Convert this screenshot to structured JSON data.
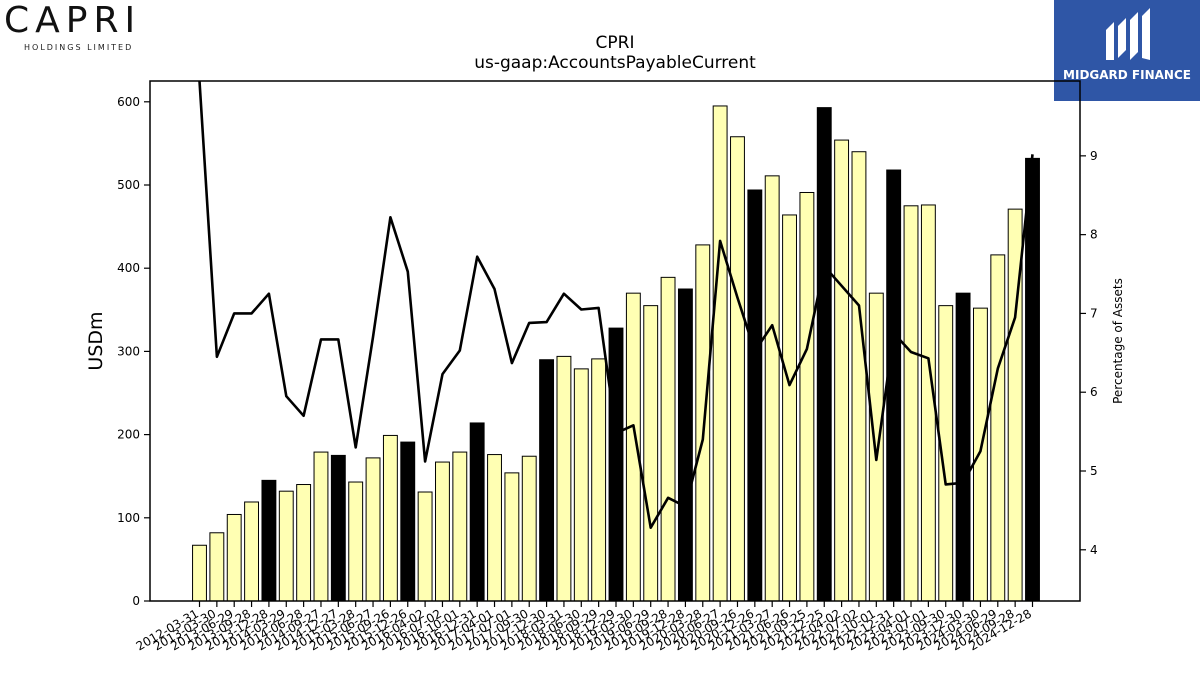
{
  "brand": {
    "company_logo": "CAPRI",
    "company_sub": "HOLDINGS LIMITED",
    "partner_logo": "MIDGARD FINANCE",
    "partner_icon": "midgard-m-icon",
    "partner_color": "#2f56a6"
  },
  "chart_data": {
    "type": "bar",
    "title": "CPRI",
    "subtitle": "us-gaap:AccountsPayableCurrent",
    "ylabel": "USDm",
    "y2label": "Percentage of Assets",
    "ylim": [
      0,
      625
    ],
    "y2lim": [
      3.35,
      9.95
    ],
    "yticks": [
      0,
      100,
      200,
      300,
      400,
      500,
      600
    ],
    "y2ticks": [
      4,
      5,
      6,
      7,
      8,
      9
    ],
    "grid": false,
    "colors": {
      "bar_default": "#ffffb3",
      "bar_highlight": "#000000",
      "line": "#000000"
    },
    "categories": [
      "2012-03-31",
      "2013-03-30",
      "2013-06-29",
      "2013-09-28",
      "2013-12-28",
      "2014-03-29",
      "2014-06-28",
      "2014-09-27",
      "2014-12-27",
      "2015-03-28",
      "2015-06-27",
      "2015-09-26",
      "2015-12-26",
      "2016-04-02",
      "2016-07-02",
      "2016-10-01",
      "2016-12-31",
      "2017-04-01",
      "2017-07-01",
      "2017-09-30",
      "2017-12-30",
      "2018-03-31",
      "2018-06-30",
      "2018-09-29",
      "2018-12-29",
      "2019-03-30",
      "2019-06-29",
      "2019-09-28",
      "2019-12-28",
      "2020-03-28",
      "2020-06-27",
      "2020-09-26",
      "2020-12-26",
      "2021-03-27",
      "2021-06-26",
      "2021-09-25",
      "2021-12-25",
      "2022-04-02",
      "2022-07-02",
      "2022-10-01",
      "2022-12-31",
      "2023-04-01",
      "2023-07-01",
      "2023-09-30",
      "2023-12-30",
      "2024-03-30",
      "2024-06-29",
      "2024-09-28",
      "2024-12-28"
    ],
    "tick_labels": [
      "2012-03-31",
      "2013-03-30",
      "2013-06-29",
      "2013-09-28",
      "2013-12-28",
      "2014-03-29",
      "2014-06-28",
      "2014-09-27",
      "2014-12-27",
      "2015-03-28",
      "2015-06-27",
      "2015-09-26",
      "2015-12-26",
      "2016-04-02",
      "2016-07-02",
      "2016-10-01",
      "2016-12-31",
      "2017-04-01",
      "2017-07-01",
      "2017-09-30",
      "2017-12-30",
      "2018-03-31",
      "2018-06-30",
      "2018-09-29",
      "2018-12-29",
      "2019-03-30",
      "2019-06-29",
      "2019-09-28",
      "2019-12-28",
      "2020-03-28",
      "2020-06-27",
      "2020-09-26",
      "2020-12-26",
      "2021-03-27",
      "2021-06-26",
      "2021-09-25",
      "2021-12-25",
      "2022-04-02",
      "2022-07-02",
      "2022-10-01",
      "2022-12-31",
      "2023-04-01",
      "2023-07-01",
      "2023-09-30",
      "2023-12-30",
      "2024-03-30",
      "2024-06-29",
      "2024-09-28",
      "2024-12-28"
    ],
    "series": [
      {
        "type": "bar",
        "axis": "left",
        "values": [
          67,
          82,
          104,
          119,
          145,
          132,
          140,
          179,
          175,
          143,
          172,
          199,
          191,
          131,
          167,
          179,
          214,
          176,
          154,
          174,
          290,
          294,
          279,
          291,
          328,
          370,
          355,
          389,
          375,
          428,
          595,
          558,
          494,
          511,
          464,
          491,
          593,
          554,
          540,
          370,
          518,
          475,
          476,
          355,
          370,
          352,
          416,
          471,
          532
        ],
        "highlight": [
          false,
          false,
          false,
          false,
          true,
          false,
          false,
          false,
          true,
          false,
          false,
          false,
          true,
          false,
          false,
          false,
          true,
          false,
          false,
          false,
          true,
          false,
          false,
          false,
          true,
          false,
          false,
          false,
          true,
          false,
          false,
          false,
          true,
          false,
          false,
          false,
          true,
          false,
          false,
          false,
          true,
          false,
          false,
          false,
          true,
          false,
          false,
          false,
          true
        ]
      },
      {
        "type": "line",
        "axis": "right",
        "values": [
          10.0,
          6.45,
          7.0,
          7.0,
          7.25,
          5.95,
          5.7,
          6.67,
          6.67,
          5.3,
          6.7,
          8.22,
          7.53,
          5.12,
          6.23,
          6.53,
          7.72,
          7.31,
          6.37,
          6.88,
          6.89,
          7.25,
          7.05,
          7.07,
          5.48,
          5.58,
          4.28,
          4.66,
          4.55,
          5.4,
          7.92,
          7.2,
          6.52,
          6.85,
          6.09,
          6.55,
          7.6,
          7.35,
          7.1,
          5.14,
          6.75,
          6.51,
          6.43,
          4.83,
          4.85,
          5.25,
          6.3,
          6.95,
          9.02
        ]
      }
    ]
  }
}
